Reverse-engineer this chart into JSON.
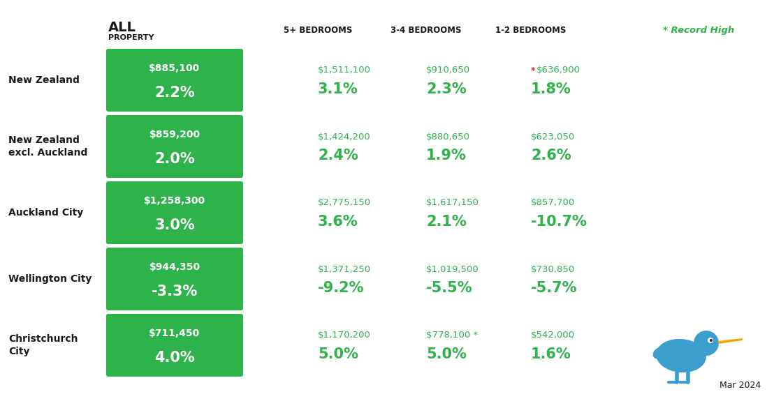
{
  "background_color": "#ffffff",
  "green_color": "#2db34a",
  "header_text_color": "#1a1a1a",
  "record_high_label": "* Record High",
  "rows": [
    {
      "label": "New Zealand",
      "label2": "",
      "all_price": "$885,100",
      "all_pct": "2.2%",
      "col2_price": "$1,511,100",
      "col2_pct": "3.1%",
      "col3_price": "$910,650",
      "col3_pct": "2.3%",
      "col4_price": "$636,900",
      "col4_pct": "1.8%",
      "col4_redstar": true
    },
    {
      "label": "New Zealand",
      "label2": "excl. Auckland",
      "all_price": "$859,200",
      "all_pct": "2.0%",
      "col2_price": "$1,424,200",
      "col2_pct": "2.4%",
      "col3_price": "$880,650",
      "col3_pct": "1.9%",
      "col4_price": "$623,050",
      "col4_pct": "2.6%",
      "col4_redstar": false
    },
    {
      "label": "Auckland City",
      "label2": "",
      "all_price": "$1,258,300",
      "all_pct": "3.0%",
      "col2_price": "$2,775,150",
      "col2_pct": "3.6%",
      "col3_price": "$1,617,150",
      "col3_pct": "2.1%",
      "col4_price": "$857,700",
      "col4_pct": "-10.7%",
      "col4_redstar": false
    },
    {
      "label": "Wellington City",
      "label2": "",
      "all_price": "$944,350",
      "all_pct": "-3.3%",
      "col2_price": "$1,371,250",
      "col2_pct": "-9.2%",
      "col3_price": "$1,019,500",
      "col3_pct": "-5.5%",
      "col4_price": "$730,850",
      "col4_pct": "-5.7%",
      "col4_redstar": false
    },
    {
      "label": "Christchurch",
      "label2": "City",
      "all_price": "$711,450",
      "all_pct": "4.0%",
      "col2_price": "$1,170,200",
      "col2_pct": "5.0%",
      "col3_price": "$778,100 *",
      "col3_pct": "5.0%",
      "col4_price": "$542,000",
      "col4_pct": "1.6%",
      "col4_redstar": false
    }
  ],
  "date_label": "Mar 2024",
  "kiwi_body_color": "#3b9ecc",
  "kiwi_beak_color": "#f0a500",
  "kiwi_eye_color": "#ffffff",
  "kiwi_pupil_color": "#1a1a1a"
}
